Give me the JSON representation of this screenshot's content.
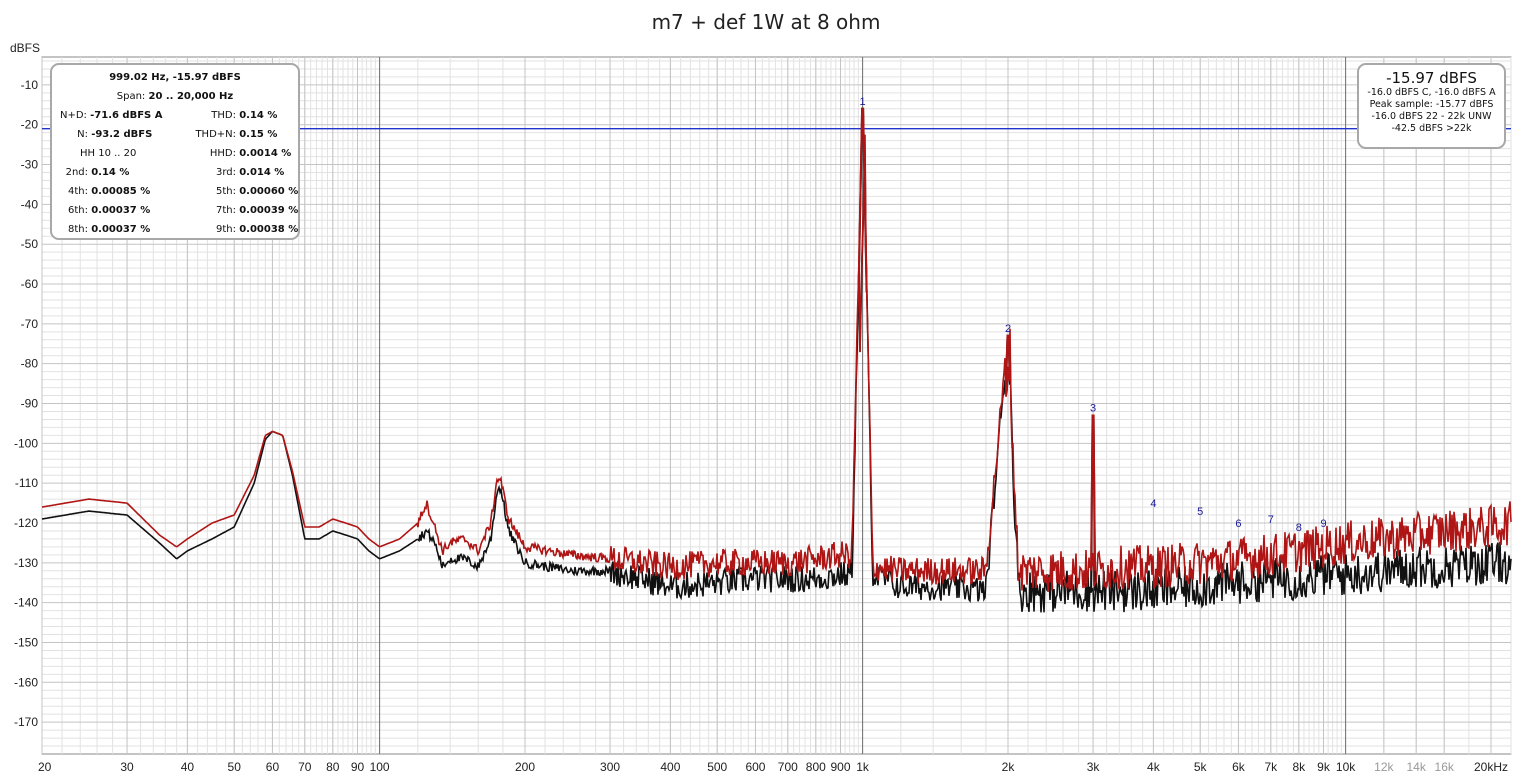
{
  "chart_data": {
    "type": "line",
    "title": "m7 + def 1W at 8 ohm",
    "ylabel": "dBFS",
    "x_scale": "log",
    "xlim": [
      20,
      22000
    ],
    "ylim": [
      -178,
      -3
    ],
    "grid": true,
    "x_ticks": [
      {
        "value": 20,
        "label": "20"
      },
      {
        "value": 30,
        "label": "30"
      },
      {
        "value": 40,
        "label": "40"
      },
      {
        "value": 50,
        "label": "50"
      },
      {
        "value": 60,
        "label": "60"
      },
      {
        "value": 70,
        "label": "70"
      },
      {
        "value": 80,
        "label": "80"
      },
      {
        "value": 90,
        "label": "90"
      },
      {
        "value": 100,
        "label": "100"
      },
      {
        "value": 200,
        "label": "200"
      },
      {
        "value": 300,
        "label": "300"
      },
      {
        "value": 400,
        "label": "400"
      },
      {
        "value": 500,
        "label": "500"
      },
      {
        "value": 600,
        "label": "600"
      },
      {
        "value": 700,
        "label": "700"
      },
      {
        "value": 800,
        "label": "800"
      },
      {
        "value": 900,
        "label": "900"
      },
      {
        "value": 1000,
        "label": "1k"
      },
      {
        "value": 2000,
        "label": "2k"
      },
      {
        "value": 3000,
        "label": "3k"
      },
      {
        "value": 4000,
        "label": "4k"
      },
      {
        "value": 5000,
        "label": "5k"
      },
      {
        "value": 6000,
        "label": "6k"
      },
      {
        "value": 7000,
        "label": "7k"
      },
      {
        "value": 8000,
        "label": "8k"
      },
      {
        "value": 9000,
        "label": "9k"
      },
      {
        "value": 10000,
        "label": "10k"
      },
      {
        "value": 12000,
        "label": "12k"
      },
      {
        "value": 14000,
        "label": "14k"
      },
      {
        "value": 16000,
        "label": "16k"
      },
      {
        "value": 20000,
        "label": "20kHz"
      }
    ],
    "y_ticks": [
      -10,
      -20,
      -30,
      -40,
      -50,
      -60,
      -70,
      -80,
      -90,
      -100,
      -110,
      -120,
      -130,
      -140,
      -150,
      -160,
      -170
    ],
    "reference_line_db": -21,
    "series": [
      {
        "color": "#111111",
        "points": [
          [
            20,
            -119
          ],
          [
            25,
            -117
          ],
          [
            30,
            -118
          ],
          [
            35,
            -125
          ],
          [
            38,
            -129
          ],
          [
            40,
            -127
          ],
          [
            45,
            -124
          ],
          [
            50,
            -121
          ],
          [
            55,
            -110
          ],
          [
            58,
            -99
          ],
          [
            60,
            -97
          ],
          [
            63,
            -98
          ],
          [
            66,
            -108
          ],
          [
            70,
            -124
          ],
          [
            75,
            -124
          ],
          [
            80,
            -122
          ],
          [
            85,
            -123
          ],
          [
            90,
            -124
          ],
          [
            95,
            -127
          ],
          [
            100,
            -129
          ],
          [
            110,
            -127
          ],
          [
            120,
            -124
          ],
          [
            125,
            -122
          ],
          [
            130,
            -125
          ],
          [
            135,
            -131
          ],
          [
            140,
            -129
          ],
          [
            150,
            -129
          ],
          [
            160,
            -131
          ],
          [
            170,
            -124
          ],
          [
            175,
            -112
          ],
          [
            178,
            -111
          ],
          [
            185,
            -122
          ],
          [
            200,
            -130
          ],
          [
            250,
            -132
          ],
          [
            300,
            -132
          ],
          [
            350,
            -134
          ],
          [
            400,
            -136
          ],
          [
            500,
            -135
          ],
          [
            600,
            -134
          ],
          [
            700,
            -134
          ],
          [
            800,
            -134
          ],
          [
            900,
            -133
          ],
          [
            950,
            -133
          ],
          [
            1000,
            -16
          ],
          [
            1050,
            -133
          ],
          [
            1200,
            -136
          ],
          [
            1500,
            -136
          ],
          [
            1800,
            -137
          ],
          [
            2000,
            -73
          ],
          [
            2100,
            -137
          ],
          [
            2500,
            -137
          ],
          [
            2990,
            -137
          ],
          [
            3000,
            -93
          ],
          [
            3010,
            -137
          ],
          [
            3500,
            -137
          ],
          [
            4000,
            -137
          ],
          [
            5000,
            -136
          ],
          [
            6000,
            -135
          ],
          [
            7000,
            -134
          ],
          [
            8000,
            -134
          ],
          [
            9000,
            -133
          ],
          [
            10000,
            -133
          ],
          [
            12000,
            -132
          ],
          [
            14000,
            -131
          ],
          [
            16000,
            -131
          ],
          [
            20000,
            -130
          ],
          [
            22000,
            -130
          ]
        ]
      },
      {
        "color": "#b01515",
        "points": [
          [
            20,
            -116
          ],
          [
            25,
            -114
          ],
          [
            30,
            -115
          ],
          [
            35,
            -123
          ],
          [
            38,
            -126
          ],
          [
            40,
            -124
          ],
          [
            45,
            -120
          ],
          [
            50,
            -118
          ],
          [
            55,
            -108
          ],
          [
            58,
            -98
          ],
          [
            60,
            -97
          ],
          [
            63,
            -98
          ],
          [
            66,
            -107
          ],
          [
            70,
            -121
          ],
          [
            75,
            -121
          ],
          [
            80,
            -119
          ],
          [
            85,
            -120
          ],
          [
            90,
            -121
          ],
          [
            95,
            -124
          ],
          [
            100,
            -126
          ],
          [
            110,
            -124
          ],
          [
            120,
            -120
          ],
          [
            125,
            -115
          ],
          [
            130,
            -121
          ],
          [
            135,
            -127
          ],
          [
            140,
            -125
          ],
          [
            150,
            -124
          ],
          [
            160,
            -127
          ],
          [
            170,
            -120
          ],
          [
            175,
            -109
          ],
          [
            178,
            -109
          ],
          [
            185,
            -119
          ],
          [
            200,
            -126
          ],
          [
            250,
            -128
          ],
          [
            300,
            -129
          ],
          [
            350,
            -130
          ],
          [
            400,
            -131
          ],
          [
            500,
            -130
          ],
          [
            600,
            -130
          ],
          [
            700,
            -130
          ],
          [
            800,
            -129
          ],
          [
            900,
            -128
          ],
          [
            950,
            -128
          ],
          [
            1000,
            -16
          ],
          [
            1050,
            -131
          ],
          [
            1200,
            -132
          ],
          [
            1500,
            -132
          ],
          [
            1800,
            -132
          ],
          [
            2000,
            -73
          ],
          [
            2100,
            -132
          ],
          [
            2500,
            -132
          ],
          [
            2990,
            -132
          ],
          [
            3000,
            -93
          ],
          [
            3010,
            -132
          ],
          [
            3500,
            -131
          ],
          [
            4000,
            -131
          ],
          [
            5000,
            -130
          ],
          [
            6000,
            -129
          ],
          [
            7000,
            -128
          ],
          [
            8000,
            -127
          ],
          [
            9000,
            -126
          ],
          [
            10000,
            -125
          ],
          [
            12000,
            -124
          ],
          [
            14000,
            -123
          ],
          [
            16000,
            -122
          ],
          [
            20000,
            -121
          ],
          [
            22000,
            -120
          ]
        ]
      }
    ],
    "peaks": [
      {
        "label": "1",
        "freq": 1000,
        "db": -16
      },
      {
        "label": "2",
        "freq": 2000,
        "db": -73
      },
      {
        "label": "3",
        "freq": 3000,
        "db": -93
      },
      {
        "label": "4",
        "freq": 4000,
        "db": -117
      },
      {
        "label": "5",
        "freq": 5000,
        "db": -119
      },
      {
        "label": "6",
        "freq": 6000,
        "db": -122
      },
      {
        "label": "7",
        "freq": 7000,
        "db": -121
      },
      {
        "label": "8",
        "freq": 8000,
        "db": -123
      },
      {
        "label": "9",
        "freq": 9000,
        "db": -122
      }
    ],
    "colors": {
      "reference": "#2233cc",
      "peak_label": "#1a1a99",
      "grid_major": "#9a9a9a",
      "grid_minor": "#e2e2e2"
    }
  },
  "stats": {
    "header": "999.02 Hz, -15.97 dBFS",
    "span_label": "Span:",
    "span_value": "20 .. 20,000 Hz",
    "nd_label": "N+D:",
    "nd_value": "-71.6 dBFS A",
    "thd_label": "THD:",
    "thd_value": "0.14 %",
    "n_label": "N:",
    "n_value": "-93.2 dBFS",
    "thdn_label": "THD+N:",
    "thdn_value": "0.15 %",
    "hh_label": "HH 10 .. 20",
    "hhd_label": "HHD:",
    "hhd_value": "0.0014 %",
    "h2_label": "2nd:",
    "h2_value": "0.14 %",
    "h3_label": "3rd:",
    "h3_value": "0.014 %",
    "h4_label": "4th:",
    "h4_value": "0.00085 %",
    "h5_label": "5th:",
    "h5_value": "0.00060 %",
    "h6_label": "6th:",
    "h6_value": "0.00037 %",
    "h7_label": "7th:",
    "h7_value": "0.00039 %",
    "h8_label": "8th:",
    "h8_value": "0.00037 %",
    "h9_label": "9th:",
    "h9_value": "0.00038 %"
  },
  "peak_box": {
    "big": "-15.97 dBFS",
    "line1": "-16.0 dBFS C, -16.0 dBFS A",
    "line2": "Peak sample: -15.77 dBFS",
    "line3": "-16.0 dBFS 22 - 22k UNW",
    "line4": "-42.5 dBFS >22k"
  }
}
